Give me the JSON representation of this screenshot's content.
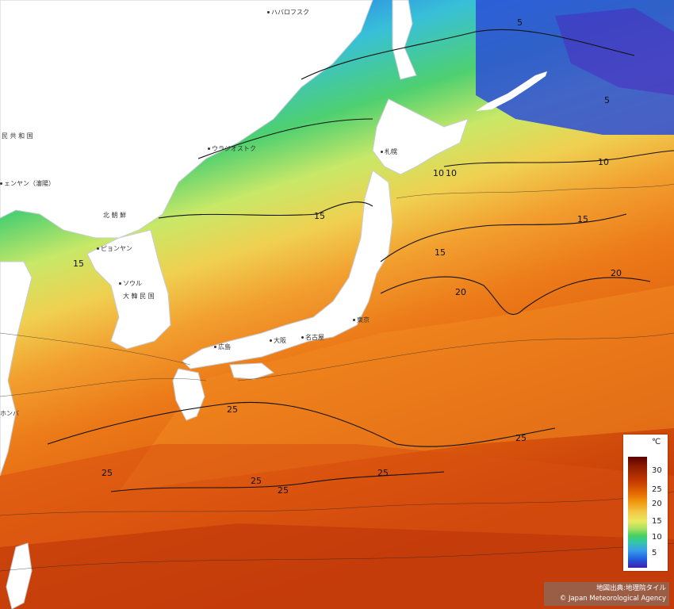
{
  "map": {
    "type": "sea-surface-temperature",
    "region": "Japan and surrounding seas",
    "colors": {
      "land": "#ffffff",
      "coast_stroke": "#c8ced6",
      "contour": "#111111",
      "sst_5": "#2c5fe0",
      "sst_10": "#3aa0e8",
      "sst_15": "#48d070",
      "sst_20": "#eaea70",
      "sst_25": "#f08018",
      "sst_30": "#a82800"
    }
  },
  "places": [
    {
      "label": "ハバロフスク"
    },
    {
      "label": "ウラジオストク"
    },
    {
      "label": "民 共 和 国"
    },
    {
      "label": "ェンヤン（瀋陽）"
    },
    {
      "label": "北 朝 鮮"
    },
    {
      "label": "ピョンヤン"
    },
    {
      "label": "ソウル"
    },
    {
      "label": "大 韓 民 国"
    },
    {
      "label": "札幌"
    },
    {
      "label": "東京"
    },
    {
      "label": "名古屋"
    },
    {
      "label": "広島"
    },
    {
      "label": "大阪"
    },
    {
      "label": "ホンバ"
    }
  ],
  "contour_labels": [
    {
      "value": "5"
    },
    {
      "value": "5"
    },
    {
      "value": "10"
    },
    {
      "value": "10"
    },
    {
      "value": "10"
    },
    {
      "value": "15"
    },
    {
      "value": "15"
    },
    {
      "value": "15"
    },
    {
      "value": "15"
    },
    {
      "value": "20"
    },
    {
      "value": "20"
    },
    {
      "value": "25"
    },
    {
      "value": "25"
    },
    {
      "value": "25"
    },
    {
      "value": "25"
    },
    {
      "value": "25"
    },
    {
      "value": "25"
    }
  ],
  "legend": {
    "unit": "℃",
    "ticks": [
      "30",
      "25",
      "20",
      "15",
      "10",
      "5"
    ]
  },
  "attribution": {
    "line1": "地図出典:地理院タイル",
    "line2": "© Japan Meteorological Agency"
  }
}
